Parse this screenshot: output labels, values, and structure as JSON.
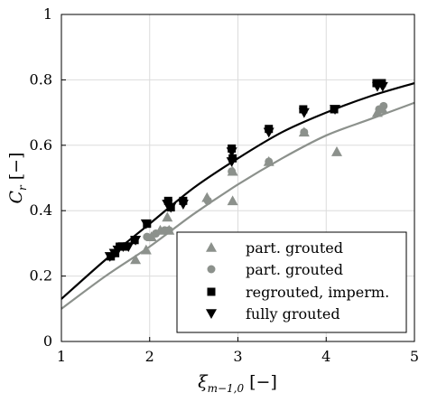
{
  "chart_data": {
    "type": "scatter",
    "title": "",
    "xlabel": "ξ",
    "xlabel_sub": "m−1,0",
    "xlabel_unit": "[−]",
    "ylabel": "C",
    "ylabel_sub": "r",
    "ylabel_unit": "[−]",
    "xlim": [
      1,
      5
    ],
    "ylim": [
      0,
      1
    ],
    "xticks": [
      1,
      2,
      3,
      4,
      5
    ],
    "yticks": [
      0,
      0.2,
      0.4,
      0.6,
      0.8,
      1
    ],
    "ytick_labels": [
      "0",
      "0.2",
      "0.4",
      "0.6",
      "0.8",
      "1"
    ],
    "grid": true,
    "legend_position": "bottom-right",
    "colors": {
      "grey": "#8c918c",
      "black": "#000000",
      "axis": "#000000",
      "grid": "#dcdcdc"
    },
    "series": [
      {
        "name": "part. grouted",
        "marker": "triangle-up",
        "color": "#8c918c",
        "points": [
          [
            1.84,
            0.25
          ],
          [
            1.96,
            0.28
          ],
          [
            2.02,
            0.32
          ],
          [
            2.12,
            0.34
          ],
          [
            2.22,
            0.34
          ],
          [
            2.2,
            0.38
          ],
          [
            2.65,
            0.44
          ],
          [
            2.94,
            0.43
          ],
          [
            2.94,
            0.52
          ],
          [
            3.35,
            0.55
          ],
          [
            3.75,
            0.64
          ],
          [
            4.12,
            0.58
          ],
          [
            4.58,
            0.7
          ],
          [
            4.64,
            0.71
          ]
        ]
      },
      {
        "name": "part. grouted",
        "marker": "circle",
        "color": "#8c918c",
        "points": [
          [
            1.97,
            0.32
          ],
          [
            2.07,
            0.33
          ],
          [
            2.17,
            0.34
          ],
          [
            2.22,
            0.34
          ],
          [
            2.66,
            0.43
          ],
          [
            2.93,
            0.52
          ],
          [
            3.35,
            0.55
          ],
          [
            3.75,
            0.64
          ],
          [
            4.6,
            0.71
          ],
          [
            4.65,
            0.72
          ]
        ]
      },
      {
        "name": "regrouted, imperm.",
        "marker": "square",
        "color": "#000000",
        "points": [
          [
            1.56,
            0.26
          ],
          [
            1.61,
            0.27
          ],
          [
            1.66,
            0.29
          ],
          [
            1.72,
            0.29
          ],
          [
            1.83,
            0.31
          ],
          [
            1.97,
            0.36
          ],
          [
            2.21,
            0.43
          ],
          [
            2.24,
            0.41
          ],
          [
            2.38,
            0.43
          ],
          [
            2.93,
            0.59
          ],
          [
            2.94,
            0.56
          ],
          [
            3.35,
            0.65
          ],
          [
            3.74,
            0.71
          ],
          [
            4.09,
            0.71
          ],
          [
            4.57,
            0.79
          ],
          [
            4.63,
            0.79
          ]
        ]
      },
      {
        "name": "fully grouted",
        "marker": "triangle-down",
        "color": "#000000",
        "points": [
          [
            1.55,
            0.26
          ],
          [
            1.6,
            0.27
          ],
          [
            1.64,
            0.28
          ],
          [
            1.7,
            0.29
          ],
          [
            1.76,
            0.29
          ],
          [
            1.84,
            0.31
          ],
          [
            1.96,
            0.36
          ],
          [
            2.2,
            0.42
          ],
          [
            2.24,
            0.41
          ],
          [
            2.38,
            0.42
          ],
          [
            2.93,
            0.58
          ],
          [
            2.93,
            0.55
          ],
          [
            3.35,
            0.64
          ],
          [
            3.75,
            0.7
          ],
          [
            4.1,
            0.71
          ],
          [
            4.58,
            0.78
          ],
          [
            4.64,
            0.78
          ]
        ]
      }
    ],
    "curves": [
      {
        "color": "#000000",
        "points": [
          [
            1.0,
            0.13
          ],
          [
            1.5,
            0.25
          ],
          [
            2.0,
            0.36
          ],
          [
            2.5,
            0.47
          ],
          [
            3.0,
            0.56
          ],
          [
            3.5,
            0.64
          ],
          [
            4.0,
            0.7
          ],
          [
            4.5,
            0.75
          ],
          [
            5.0,
            0.79
          ]
        ]
      },
      {
        "color": "#8c918c",
        "points": [
          [
            1.0,
            0.1
          ],
          [
            1.5,
            0.2
          ],
          [
            2.0,
            0.29
          ],
          [
            2.5,
            0.39
          ],
          [
            3.0,
            0.48
          ],
          [
            3.5,
            0.56
          ],
          [
            4.0,
            0.63
          ],
          [
            4.5,
            0.68
          ],
          [
            5.0,
            0.73
          ]
        ]
      }
    ]
  }
}
